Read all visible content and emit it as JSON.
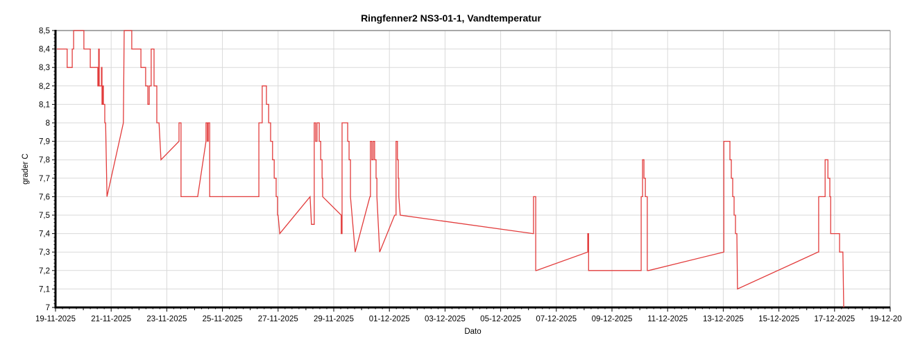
{
  "title": "Ringfenner2 NS3-01-1, Vandtemperatur",
  "chart_data": {
    "type": "line",
    "title": "Ringfenner2 NS3-01-1, Vandtemperatur",
    "xlabel": "Dato",
    "ylabel": "grader C",
    "ylim": [
      7,
      8.5
    ],
    "ytick_step": 0.1,
    "ytick_labels": [
      "7",
      "7,1",
      "7,2",
      "7,3",
      "7,4",
      "7,5",
      "7,6",
      "7,7",
      "7,8",
      "7,9",
      "8",
      "8,1",
      "8,2",
      "8,3",
      "8,4",
      "8,5"
    ],
    "x_unit": "days since 19-11-2025",
    "xlim_days": [
      0,
      30
    ],
    "xtick_day_offsets": [
      0,
      2,
      4,
      6,
      8,
      10,
      12,
      14,
      16,
      18,
      20,
      22,
      24,
      26,
      28,
      30
    ],
    "xtick_labels": [
      "19-11-2025",
      "21-11-2025",
      "23-11-2025",
      "25-11-2025",
      "27-11-2025",
      "29-11-2025",
      "01-12-2025",
      "03-12-2025",
      "05-12-2025",
      "07-12-2025",
      "09-12-2025",
      "11-12-2025",
      "13-12-2025",
      "15-12-2025",
      "17-12-2025",
      "19-12-2025"
    ],
    "grid": true,
    "legend_position": "none",
    "line_color": "#e23b3b",
    "grid_color": "#d9d9d9",
    "axis_color": "#000000",
    "border_color": "#8c8c8c",
    "series": [
      {
        "name": "Vandtemperatur",
        "color": "#e23b3b",
        "points": [
          [
            0.05,
            8.4
          ],
          [
            0.42,
            8.4
          ],
          [
            0.42,
            8.3
          ],
          [
            0.6,
            8.3
          ],
          [
            0.6,
            8.4
          ],
          [
            0.65,
            8.4
          ],
          [
            0.65,
            8.5
          ],
          [
            1.02,
            8.5
          ],
          [
            1.02,
            8.4
          ],
          [
            1.25,
            8.4
          ],
          [
            1.25,
            8.3
          ],
          [
            1.52,
            8.3
          ],
          [
            1.52,
            8.2
          ],
          [
            1.55,
            8.2
          ],
          [
            1.55,
            8.4
          ],
          [
            1.57,
            8.4
          ],
          [
            1.57,
            8.2
          ],
          [
            1.65,
            8.2
          ],
          [
            1.65,
            8.3
          ],
          [
            1.67,
            8.3
          ],
          [
            1.67,
            8.1
          ],
          [
            1.7,
            8.1
          ],
          [
            1.7,
            8.2
          ],
          [
            1.72,
            8.2
          ],
          [
            1.72,
            8.1
          ],
          [
            1.77,
            8.1
          ],
          [
            1.77,
            8.0
          ],
          [
            1.8,
            8.0
          ],
          [
            1.85,
            7.6
          ],
          [
            2.44,
            8.0
          ],
          [
            2.47,
            8.5
          ],
          [
            2.74,
            8.5
          ],
          [
            2.74,
            8.4
          ],
          [
            3.07,
            8.4
          ],
          [
            3.07,
            8.3
          ],
          [
            3.24,
            8.3
          ],
          [
            3.24,
            8.2
          ],
          [
            3.32,
            8.2
          ],
          [
            3.32,
            8.1
          ],
          [
            3.37,
            8.1
          ],
          [
            3.37,
            8.2
          ],
          [
            3.44,
            8.2
          ],
          [
            3.44,
            8.4
          ],
          [
            3.54,
            8.4
          ],
          [
            3.54,
            8.2
          ],
          [
            3.64,
            8.2
          ],
          [
            3.64,
            8.0
          ],
          [
            3.72,
            8.0
          ],
          [
            3.79,
            7.8
          ],
          [
            4.44,
            7.9
          ],
          [
            4.44,
            8.0
          ],
          [
            4.51,
            8.0
          ],
          [
            4.51,
            7.6
          ],
          [
            4.54,
            7.6
          ],
          [
            5.11,
            7.6
          ],
          [
            5.41,
            7.9
          ],
          [
            5.41,
            8.0
          ],
          [
            5.46,
            8.0
          ],
          [
            5.46,
            7.9
          ],
          [
            5.49,
            7.9
          ],
          [
            5.49,
            8.0
          ],
          [
            5.54,
            8.0
          ],
          [
            5.54,
            7.6
          ],
          [
            5.56,
            7.6
          ],
          [
            7.31,
            7.6
          ],
          [
            7.31,
            8.0
          ],
          [
            7.43,
            8.0
          ],
          [
            7.43,
            8.2
          ],
          [
            7.58,
            8.2
          ],
          [
            7.58,
            8.1
          ],
          [
            7.66,
            8.1
          ],
          [
            7.66,
            8.0
          ],
          [
            7.73,
            8.0
          ],
          [
            7.73,
            7.9
          ],
          [
            7.8,
            7.9
          ],
          [
            7.8,
            7.8
          ],
          [
            7.86,
            7.8
          ],
          [
            7.86,
            7.7
          ],
          [
            7.93,
            7.7
          ],
          [
            7.93,
            7.6
          ],
          [
            7.98,
            7.6
          ],
          [
            7.98,
            7.5
          ],
          [
            8.0,
            7.5
          ],
          [
            8.06,
            7.4
          ],
          [
            9.15,
            7.6
          ],
          [
            9.2,
            7.45
          ],
          [
            9.3,
            7.45
          ],
          [
            9.3,
            8.0
          ],
          [
            9.35,
            8.0
          ],
          [
            9.35,
            7.9
          ],
          [
            9.4,
            7.9
          ],
          [
            9.4,
            8.0
          ],
          [
            9.48,
            8.0
          ],
          [
            9.48,
            7.9
          ],
          [
            9.53,
            7.9
          ],
          [
            9.53,
            7.8
          ],
          [
            9.58,
            7.8
          ],
          [
            9.58,
            7.7
          ],
          [
            9.6,
            7.7
          ],
          [
            9.6,
            7.6
          ],
          [
            10.27,
            7.5
          ],
          [
            10.27,
            7.4
          ],
          [
            10.3,
            7.4
          ],
          [
            10.3,
            8.0
          ],
          [
            10.5,
            8.0
          ],
          [
            10.5,
            7.9
          ],
          [
            10.55,
            7.9
          ],
          [
            10.55,
            7.8
          ],
          [
            10.6,
            7.8
          ],
          [
            10.6,
            7.6
          ],
          [
            10.77,
            7.3
          ],
          [
            11.3,
            7.6
          ],
          [
            11.32,
            7.6
          ],
          [
            11.32,
            7.9
          ],
          [
            11.37,
            7.9
          ],
          [
            11.37,
            7.8
          ],
          [
            11.42,
            7.8
          ],
          [
            11.42,
            7.9
          ],
          [
            11.47,
            7.9
          ],
          [
            11.47,
            7.8
          ],
          [
            11.52,
            7.8
          ],
          [
            11.52,
            7.7
          ],
          [
            11.55,
            7.7
          ],
          [
            11.55,
            7.6
          ],
          [
            11.65,
            7.3
          ],
          [
            12.19,
            7.5
          ],
          [
            12.24,
            7.5
          ],
          [
            12.24,
            7.9
          ],
          [
            12.29,
            7.9
          ],
          [
            12.29,
            7.8
          ],
          [
            12.32,
            7.8
          ],
          [
            12.32,
            7.7
          ],
          [
            12.34,
            7.7
          ],
          [
            12.34,
            7.6
          ],
          [
            12.39,
            7.5
          ],
          [
            17.16,
            7.4
          ],
          [
            17.18,
            7.4
          ],
          [
            17.18,
            7.6
          ],
          [
            17.26,
            7.6
          ],
          [
            17.26,
            7.2
          ],
          [
            17.28,
            7.2
          ],
          [
            19.13,
            7.3
          ],
          [
            19.13,
            7.4
          ],
          [
            19.16,
            7.4
          ],
          [
            19.16,
            7.2
          ],
          [
            19.18,
            7.2
          ],
          [
            21.05,
            7.2
          ],
          [
            21.05,
            7.6
          ],
          [
            21.1,
            7.6
          ],
          [
            21.1,
            7.8
          ],
          [
            21.15,
            7.8
          ],
          [
            21.15,
            7.7
          ],
          [
            21.2,
            7.7
          ],
          [
            21.2,
            7.6
          ],
          [
            21.27,
            7.6
          ],
          [
            21.27,
            7.2
          ],
          [
            21.32,
            7.2
          ],
          [
            24.02,
            7.3
          ],
          [
            24.02,
            7.9
          ],
          [
            24.24,
            7.9
          ],
          [
            24.24,
            7.8
          ],
          [
            24.29,
            7.8
          ],
          [
            24.29,
            7.7
          ],
          [
            24.34,
            7.7
          ],
          [
            24.34,
            7.6
          ],
          [
            24.39,
            7.6
          ],
          [
            24.39,
            7.5
          ],
          [
            24.44,
            7.5
          ],
          [
            24.44,
            7.4
          ],
          [
            24.49,
            7.4
          ],
          [
            24.51,
            7.1
          ],
          [
            27.41,
            7.3
          ],
          [
            27.43,
            7.3
          ],
          [
            27.43,
            7.6
          ],
          [
            27.66,
            7.6
          ],
          [
            27.66,
            7.8
          ],
          [
            27.76,
            7.8
          ],
          [
            27.76,
            7.7
          ],
          [
            27.83,
            7.7
          ],
          [
            27.83,
            7.6
          ],
          [
            27.86,
            7.6
          ],
          [
            27.86,
            7.4
          ],
          [
            28.18,
            7.4
          ],
          [
            28.18,
            7.3
          ],
          [
            28.3,
            7.3
          ],
          [
            28.33,
            7.0
          ]
        ]
      }
    ]
  }
}
